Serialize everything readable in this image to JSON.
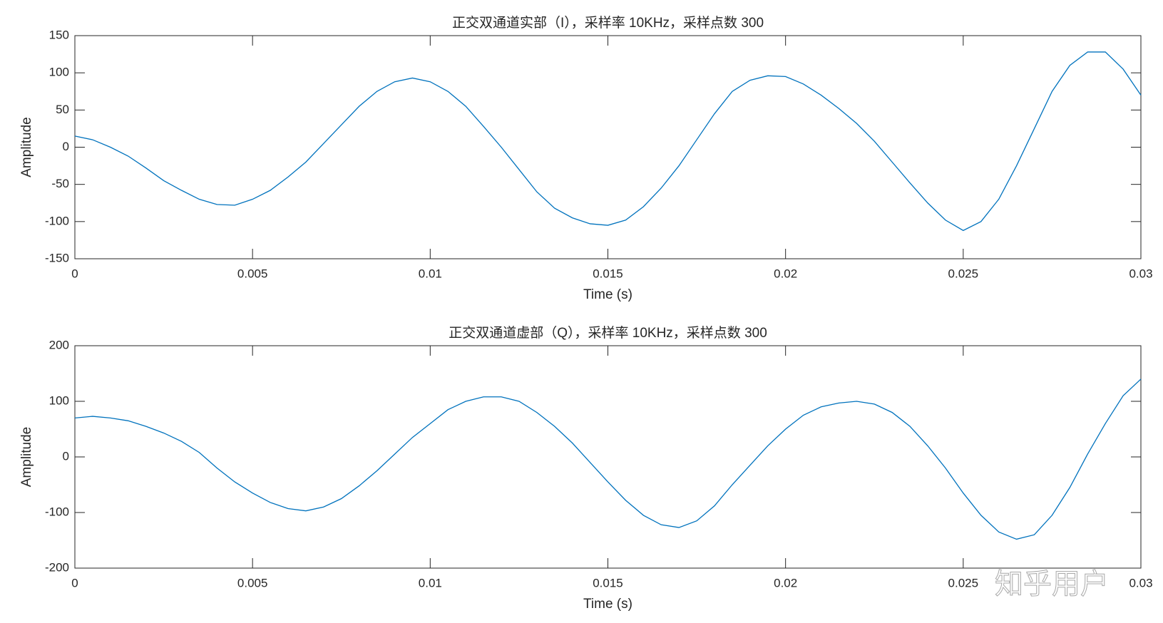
{
  "chart_data": [
    {
      "type": "line",
      "title": "正交双通道实部（I），采样率 10KHz，采样点数 300",
      "xlabel": "Time (s)",
      "ylabel": "Amplitude",
      "color": "#0072bd",
      "x": [
        0,
        0.0005,
        0.001,
        0.0015,
        0.002,
        0.0025,
        0.003,
        0.0035,
        0.004,
        0.0045,
        0.005,
        0.0055,
        0.006,
        0.0065,
        0.007,
        0.0075,
        0.008,
        0.0085,
        0.009,
        0.0095,
        0.01,
        0.0105,
        0.011,
        0.0115,
        0.012,
        0.0125,
        0.013,
        0.0135,
        0.014,
        0.0145,
        0.015,
        0.0155,
        0.016,
        0.0165,
        0.017,
        0.0175,
        0.018,
        0.0185,
        0.019,
        0.0195,
        0.02,
        0.0205,
        0.021,
        0.0215,
        0.022,
        0.0225,
        0.023,
        0.0235,
        0.024,
        0.0245,
        0.025,
        0.0255,
        0.026,
        0.0265,
        0.027,
        0.0275,
        0.028,
        0.0285,
        0.029,
        0.0295,
        0.03
      ],
      "values": [
        15,
        10,
        0,
        -12,
        -28,
        -45,
        -58,
        -70,
        -77,
        -78,
        -70,
        -58,
        -40,
        -20,
        5,
        30,
        55,
        75,
        88,
        93,
        88,
        75,
        55,
        28,
        0,
        -30,
        -60,
        -82,
        -95,
        -103,
        -105,
        -98,
        -80,
        -55,
        -25,
        10,
        45,
        75,
        90,
        96,
        95,
        85,
        70,
        52,
        32,
        8,
        -20,
        -48,
        -75,
        -98,
        -112,
        -100,
        -70,
        -25,
        25,
        75,
        110,
        128,
        128,
        105,
        70
      ],
      "xlim": [
        0,
        0.03
      ],
      "xticks": [
        0,
        0.005,
        0.01,
        0.015,
        0.02,
        0.025,
        0.03
      ],
      "ylim": [
        -150,
        150
      ],
      "yticks": [
        -150,
        -100,
        -50,
        0,
        50,
        100,
        150
      ]
    },
    {
      "type": "line",
      "title": "正交双通道虚部（Q），采样率 10KHz，采样点数 300",
      "xlabel": "Time (s)",
      "ylabel": "Amplitude",
      "color": "#0072bd",
      "x": [
        0,
        0.0005,
        0.001,
        0.0015,
        0.002,
        0.0025,
        0.003,
        0.0035,
        0.004,
        0.0045,
        0.005,
        0.0055,
        0.006,
        0.0065,
        0.007,
        0.0075,
        0.008,
        0.0085,
        0.009,
        0.0095,
        0.01,
        0.0105,
        0.011,
        0.0115,
        0.012,
        0.0125,
        0.013,
        0.0135,
        0.014,
        0.0145,
        0.015,
        0.0155,
        0.016,
        0.0165,
        0.017,
        0.0175,
        0.018,
        0.0185,
        0.019,
        0.0195,
        0.02,
        0.0205,
        0.021,
        0.0215,
        0.022,
        0.0225,
        0.023,
        0.0235,
        0.024,
        0.0245,
        0.025,
        0.0255,
        0.026,
        0.0265,
        0.027,
        0.0275,
        0.028,
        0.0285,
        0.029,
        0.0295,
        0.03
      ],
      "values": [
        70,
        73,
        70,
        65,
        55,
        43,
        28,
        8,
        -20,
        -45,
        -65,
        -82,
        -93,
        -97,
        -90,
        -75,
        -52,
        -25,
        5,
        35,
        60,
        85,
        100,
        108,
        108,
        100,
        80,
        55,
        25,
        -10,
        -45,
        -78,
        -105,
        -122,
        -127,
        -115,
        -88,
        -50,
        -15,
        20,
        50,
        75,
        90,
        97,
        100,
        95,
        80,
        55,
        20,
        -20,
        -65,
        -105,
        -135,
        -148,
        -140,
        -105,
        -55,
        5,
        60,
        110,
        140
      ],
      "xlim": [
        0,
        0.03
      ],
      "xticks": [
        0,
        0.005,
        0.01,
        0.015,
        0.02,
        0.025,
        0.03
      ],
      "ylim": [
        -200,
        200
      ],
      "yticks": [
        -200,
        -100,
        0,
        100,
        200
      ]
    }
  ],
  "watermark": "知乎用户"
}
